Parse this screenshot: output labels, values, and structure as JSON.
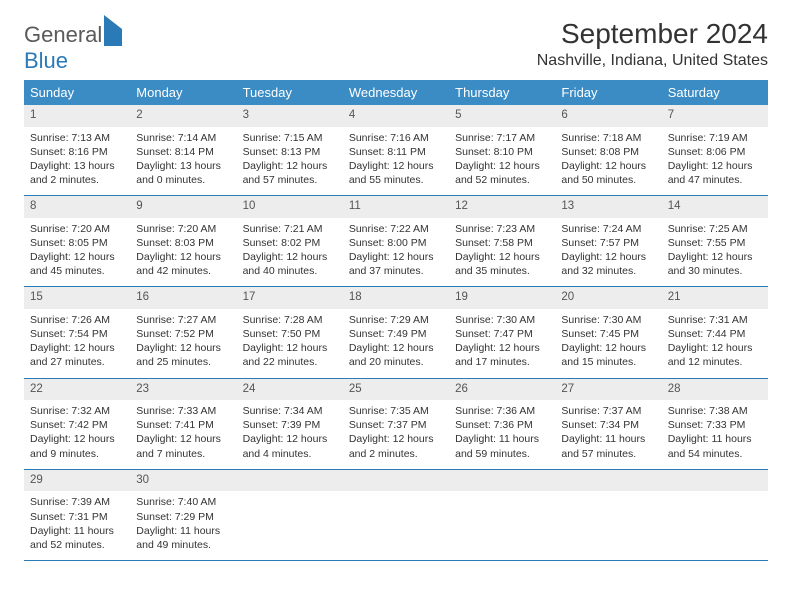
{
  "logo": {
    "part1": "General",
    "part2": "Blue"
  },
  "title": "September 2024",
  "location": "Nashville, Indiana, United States",
  "accent_color": "#3b8bc4",
  "border_color": "#2a7ab8",
  "header_bg": "#ededed",
  "weekdays": [
    "Sunday",
    "Monday",
    "Tuesday",
    "Wednesday",
    "Thursday",
    "Friday",
    "Saturday"
  ],
  "weeks": [
    [
      {
        "n": 1,
        "sr": "Sunrise: 7:13 AM",
        "ss": "Sunset: 8:16 PM",
        "d1": "Daylight: 13 hours",
        "d2": "and 2 minutes."
      },
      {
        "n": 2,
        "sr": "Sunrise: 7:14 AM",
        "ss": "Sunset: 8:14 PM",
        "d1": "Daylight: 13 hours",
        "d2": "and 0 minutes."
      },
      {
        "n": 3,
        "sr": "Sunrise: 7:15 AM",
        "ss": "Sunset: 8:13 PM",
        "d1": "Daylight: 12 hours",
        "d2": "and 57 minutes."
      },
      {
        "n": 4,
        "sr": "Sunrise: 7:16 AM",
        "ss": "Sunset: 8:11 PM",
        "d1": "Daylight: 12 hours",
        "d2": "and 55 minutes."
      },
      {
        "n": 5,
        "sr": "Sunrise: 7:17 AM",
        "ss": "Sunset: 8:10 PM",
        "d1": "Daylight: 12 hours",
        "d2": "and 52 minutes."
      },
      {
        "n": 6,
        "sr": "Sunrise: 7:18 AM",
        "ss": "Sunset: 8:08 PM",
        "d1": "Daylight: 12 hours",
        "d2": "and 50 minutes."
      },
      {
        "n": 7,
        "sr": "Sunrise: 7:19 AM",
        "ss": "Sunset: 8:06 PM",
        "d1": "Daylight: 12 hours",
        "d2": "and 47 minutes."
      }
    ],
    [
      {
        "n": 8,
        "sr": "Sunrise: 7:20 AM",
        "ss": "Sunset: 8:05 PM",
        "d1": "Daylight: 12 hours",
        "d2": "and 45 minutes."
      },
      {
        "n": 9,
        "sr": "Sunrise: 7:20 AM",
        "ss": "Sunset: 8:03 PM",
        "d1": "Daylight: 12 hours",
        "d2": "and 42 minutes."
      },
      {
        "n": 10,
        "sr": "Sunrise: 7:21 AM",
        "ss": "Sunset: 8:02 PM",
        "d1": "Daylight: 12 hours",
        "d2": "and 40 minutes."
      },
      {
        "n": 11,
        "sr": "Sunrise: 7:22 AM",
        "ss": "Sunset: 8:00 PM",
        "d1": "Daylight: 12 hours",
        "d2": "and 37 minutes."
      },
      {
        "n": 12,
        "sr": "Sunrise: 7:23 AM",
        "ss": "Sunset: 7:58 PM",
        "d1": "Daylight: 12 hours",
        "d2": "and 35 minutes."
      },
      {
        "n": 13,
        "sr": "Sunrise: 7:24 AM",
        "ss": "Sunset: 7:57 PM",
        "d1": "Daylight: 12 hours",
        "d2": "and 32 minutes."
      },
      {
        "n": 14,
        "sr": "Sunrise: 7:25 AM",
        "ss": "Sunset: 7:55 PM",
        "d1": "Daylight: 12 hours",
        "d2": "and 30 minutes."
      }
    ],
    [
      {
        "n": 15,
        "sr": "Sunrise: 7:26 AM",
        "ss": "Sunset: 7:54 PM",
        "d1": "Daylight: 12 hours",
        "d2": "and 27 minutes."
      },
      {
        "n": 16,
        "sr": "Sunrise: 7:27 AM",
        "ss": "Sunset: 7:52 PM",
        "d1": "Daylight: 12 hours",
        "d2": "and 25 minutes."
      },
      {
        "n": 17,
        "sr": "Sunrise: 7:28 AM",
        "ss": "Sunset: 7:50 PM",
        "d1": "Daylight: 12 hours",
        "d2": "and 22 minutes."
      },
      {
        "n": 18,
        "sr": "Sunrise: 7:29 AM",
        "ss": "Sunset: 7:49 PM",
        "d1": "Daylight: 12 hours",
        "d2": "and 20 minutes."
      },
      {
        "n": 19,
        "sr": "Sunrise: 7:30 AM",
        "ss": "Sunset: 7:47 PM",
        "d1": "Daylight: 12 hours",
        "d2": "and 17 minutes."
      },
      {
        "n": 20,
        "sr": "Sunrise: 7:30 AM",
        "ss": "Sunset: 7:45 PM",
        "d1": "Daylight: 12 hours",
        "d2": "and 15 minutes."
      },
      {
        "n": 21,
        "sr": "Sunrise: 7:31 AM",
        "ss": "Sunset: 7:44 PM",
        "d1": "Daylight: 12 hours",
        "d2": "and 12 minutes."
      }
    ],
    [
      {
        "n": 22,
        "sr": "Sunrise: 7:32 AM",
        "ss": "Sunset: 7:42 PM",
        "d1": "Daylight: 12 hours",
        "d2": "and 9 minutes."
      },
      {
        "n": 23,
        "sr": "Sunrise: 7:33 AM",
        "ss": "Sunset: 7:41 PM",
        "d1": "Daylight: 12 hours",
        "d2": "and 7 minutes."
      },
      {
        "n": 24,
        "sr": "Sunrise: 7:34 AM",
        "ss": "Sunset: 7:39 PM",
        "d1": "Daylight: 12 hours",
        "d2": "and 4 minutes."
      },
      {
        "n": 25,
        "sr": "Sunrise: 7:35 AM",
        "ss": "Sunset: 7:37 PM",
        "d1": "Daylight: 12 hours",
        "d2": "and 2 minutes."
      },
      {
        "n": 26,
        "sr": "Sunrise: 7:36 AM",
        "ss": "Sunset: 7:36 PM",
        "d1": "Daylight: 11 hours",
        "d2": "and 59 minutes."
      },
      {
        "n": 27,
        "sr": "Sunrise: 7:37 AM",
        "ss": "Sunset: 7:34 PM",
        "d1": "Daylight: 11 hours",
        "d2": "and 57 minutes."
      },
      {
        "n": 28,
        "sr": "Sunrise: 7:38 AM",
        "ss": "Sunset: 7:33 PM",
        "d1": "Daylight: 11 hours",
        "d2": "and 54 minutes."
      }
    ],
    [
      {
        "n": 29,
        "sr": "Sunrise: 7:39 AM",
        "ss": "Sunset: 7:31 PM",
        "d1": "Daylight: 11 hours",
        "d2": "and 52 minutes."
      },
      {
        "n": 30,
        "sr": "Sunrise: 7:40 AM",
        "ss": "Sunset: 7:29 PM",
        "d1": "Daylight: 11 hours",
        "d2": "and 49 minutes."
      },
      null,
      null,
      null,
      null,
      null
    ]
  ]
}
